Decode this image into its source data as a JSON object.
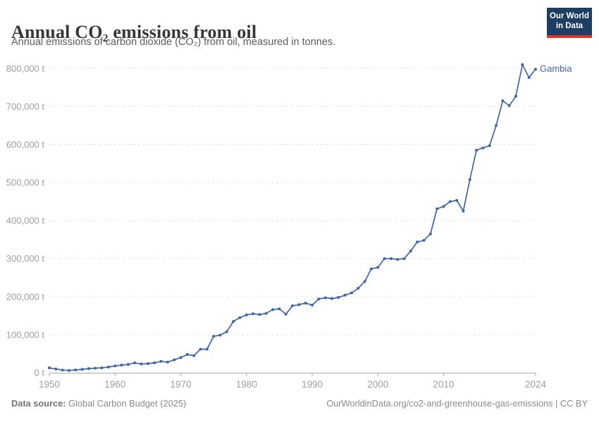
{
  "header": {
    "title": "Annual CO₂ emissions from oil",
    "subtitle": "Annual emissions of carbon dioxide (CO₂) from oil, measured in tonnes.",
    "logo_line1": "Our World",
    "logo_line2": "in Data"
  },
  "chart_data": {
    "type": "line",
    "title": "Annual CO₂ emissions from oil",
    "xlabel": "",
    "ylabel": "tonnes",
    "xlim": [
      1950,
      2024
    ],
    "ylim": [
      0,
      800000
    ],
    "grid": "horizontal-dashed",
    "legend_position": "end-of-line-label",
    "x_ticks": [
      1950,
      1960,
      1970,
      1980,
      1990,
      2000,
      2010,
      2024
    ],
    "y_ticks": [
      {
        "value": 0,
        "label": "0 t"
      },
      {
        "value": 100000,
        "label": "100,000 t"
      },
      {
        "value": 200000,
        "label": "200,000 t"
      },
      {
        "value": 300000,
        "label": "300,000 t"
      },
      {
        "value": 400000,
        "label": "400,000 t"
      },
      {
        "value": 500000,
        "label": "500,000 t"
      },
      {
        "value": 600000,
        "label": "600,000 t"
      },
      {
        "value": 700000,
        "label": "700,000 t"
      },
      {
        "value": 800000,
        "label": "800,000 t"
      }
    ],
    "series": [
      {
        "name": "Gambia",
        "color": "#4166a5",
        "x": [
          1950,
          1951,
          1952,
          1953,
          1954,
          1955,
          1956,
          1957,
          1958,
          1959,
          1960,
          1961,
          1962,
          1963,
          1964,
          1965,
          1966,
          1967,
          1968,
          1969,
          1970,
          1971,
          1972,
          1973,
          1974,
          1975,
          1976,
          1977,
          1978,
          1979,
          1980,
          1981,
          1982,
          1983,
          1984,
          1985,
          1986,
          1987,
          1988,
          1989,
          1990,
          1991,
          1992,
          1993,
          1994,
          1995,
          1996,
          1997,
          1998,
          1999,
          2000,
          2001,
          2002,
          2003,
          2004,
          2005,
          2006,
          2007,
          2008,
          2009,
          2010,
          2011,
          2012,
          2013,
          2014,
          2015,
          2016,
          2017,
          2018,
          2019,
          2020,
          2021,
          2022,
          2023,
          2024
        ],
        "values": [
          13000,
          10000,
          7000,
          6000,
          7500,
          9000,
          11000,
          12000,
          13000,
          15000,
          18000,
          20000,
          22000,
          26000,
          23000,
          24000,
          26000,
          30000,
          28000,
          34000,
          40000,
          48000,
          45000,
          62000,
          62000,
          96000,
          99000,
          108000,
          135000,
          145000,
          152000,
          155000,
          153000,
          156000,
          166000,
          168000,
          154000,
          176000,
          179000,
          183000,
          178000,
          194000,
          197000,
          195000,
          198000,
          204000,
          210000,
          222000,
          240000,
          273000,
          277000,
          300000,
          300000,
          298000,
          300000,
          320000,
          344000,
          348000,
          365000,
          431000,
          437000,
          450000,
          453000,
          425000,
          508000,
          585000,
          591000,
          597000,
          650000,
          715000,
          702000,
          727000,
          810000,
          776000,
          798000
        ]
      }
    ]
  },
  "footer": {
    "source_label": "Data source:",
    "source_value": " Global Carbon Budget (2025)",
    "attribution": "OurWorldinData.org/co2-and-greenhouse-gas-emissions | CC BY"
  },
  "colors": {
    "line": "#4166a5",
    "grid": "#e2e2e2",
    "axis": "#a8a8a8",
    "tick_text": "#9e9e9e",
    "logo_bg": "#1d3d63",
    "logo_bar": "#d7382d"
  }
}
